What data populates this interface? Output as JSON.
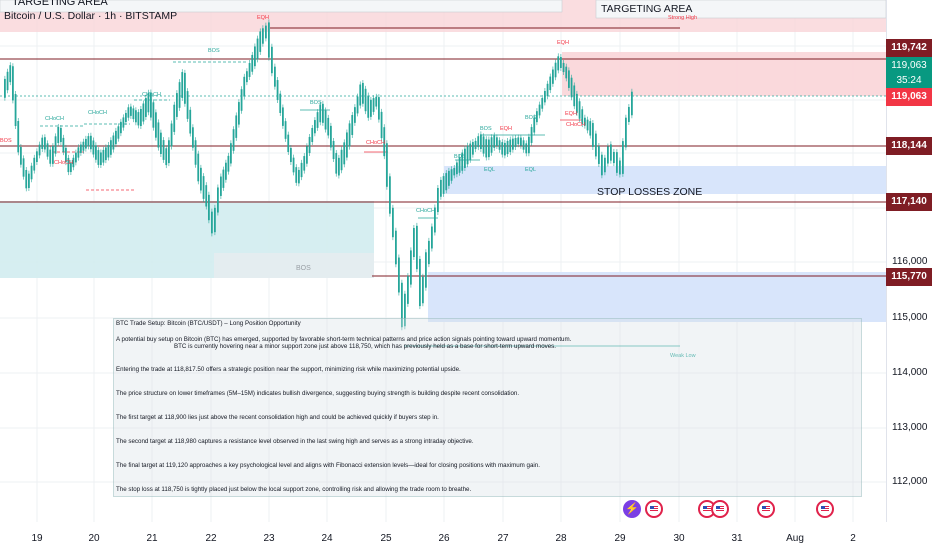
{
  "title": "Bitcoin / U.S. Dollar · 1h · BITSTAMP",
  "zones": {
    "targeting_area_left": "TARGETING AREA",
    "targeting_area_right": "TARGETING AREA",
    "stop_losses_zone": "STOP LOSSES ZONE",
    "strong_high": "Strong High",
    "weak_low": "Weak Low",
    "eqh": "EQH",
    "eql": "EQL",
    "bos": "BOS",
    "choch": "CHoCH"
  },
  "price_axis": {
    "ticks": [
      "116,000",
      "115,000",
      "114,000",
      "113,000",
      "112,000"
    ],
    "labels": [
      {
        "text": "119,742",
        "color": "#7f1d24"
      },
      {
        "text": "119,063",
        "color": "#089981"
      },
      {
        "text": "35:24",
        "color": "#089981"
      },
      {
        "text": "119,063",
        "color": "#f23645"
      },
      {
        "text": "118,144",
        "color": "#7f1d24"
      },
      {
        "text": "117,140",
        "color": "#7f1d24"
      },
      {
        "text": "115,770",
        "color": "#7f1d24"
      }
    ]
  },
  "time_axis": [
    "19",
    "20",
    "21",
    "22",
    "23",
    "24",
    "25",
    "26",
    "27",
    "28",
    "29",
    "30",
    "31",
    "Aug",
    "2"
  ],
  "notes": [
    "BTC Trade Setup: Bitcoin (BTC/USDT) – Long Position Opportunity",
    "A potential buy setup on Bitcoin (BTC) has emerged, supported by favorable short-term technical patterns and price action signals pointing toward upward momentum.",
    "BTC is currently hovering near a minor support zone just above 118,750, which has previously held as a base for short-term upward moves.",
    "Entering the trade at 118,817.50 offers a strategic position near the support, minimizing risk while maximizing potential upside.",
    "The price structure on lower timeframes (5M–15M) indicates bullish divergence, suggesting buying strength is building despite recent consolidation.",
    "The first target at 118,900 lies just above the recent consolidation high and could be achieved quickly if buyers step in.",
    "The second target at 118,980 captures a resistance level observed in the last swing high and serves as a strong intraday objective.",
    "The final target at 119,120 approaches a key psychological level and aligns with Fibonacci extension levels—ideal for closing positions with maximum gain.",
    "The stop loss at 118,750 is tightly placed just below the local support zone, controlling risk and allowing the trade room to breathe."
  ],
  "colors": {
    "bull": "#26a69a",
    "level_line": "#7f1d24",
    "target_zone": "#f9d5d8",
    "support_zone": "#d1ecef",
    "stop_zone": "#d6e4fb"
  }
}
